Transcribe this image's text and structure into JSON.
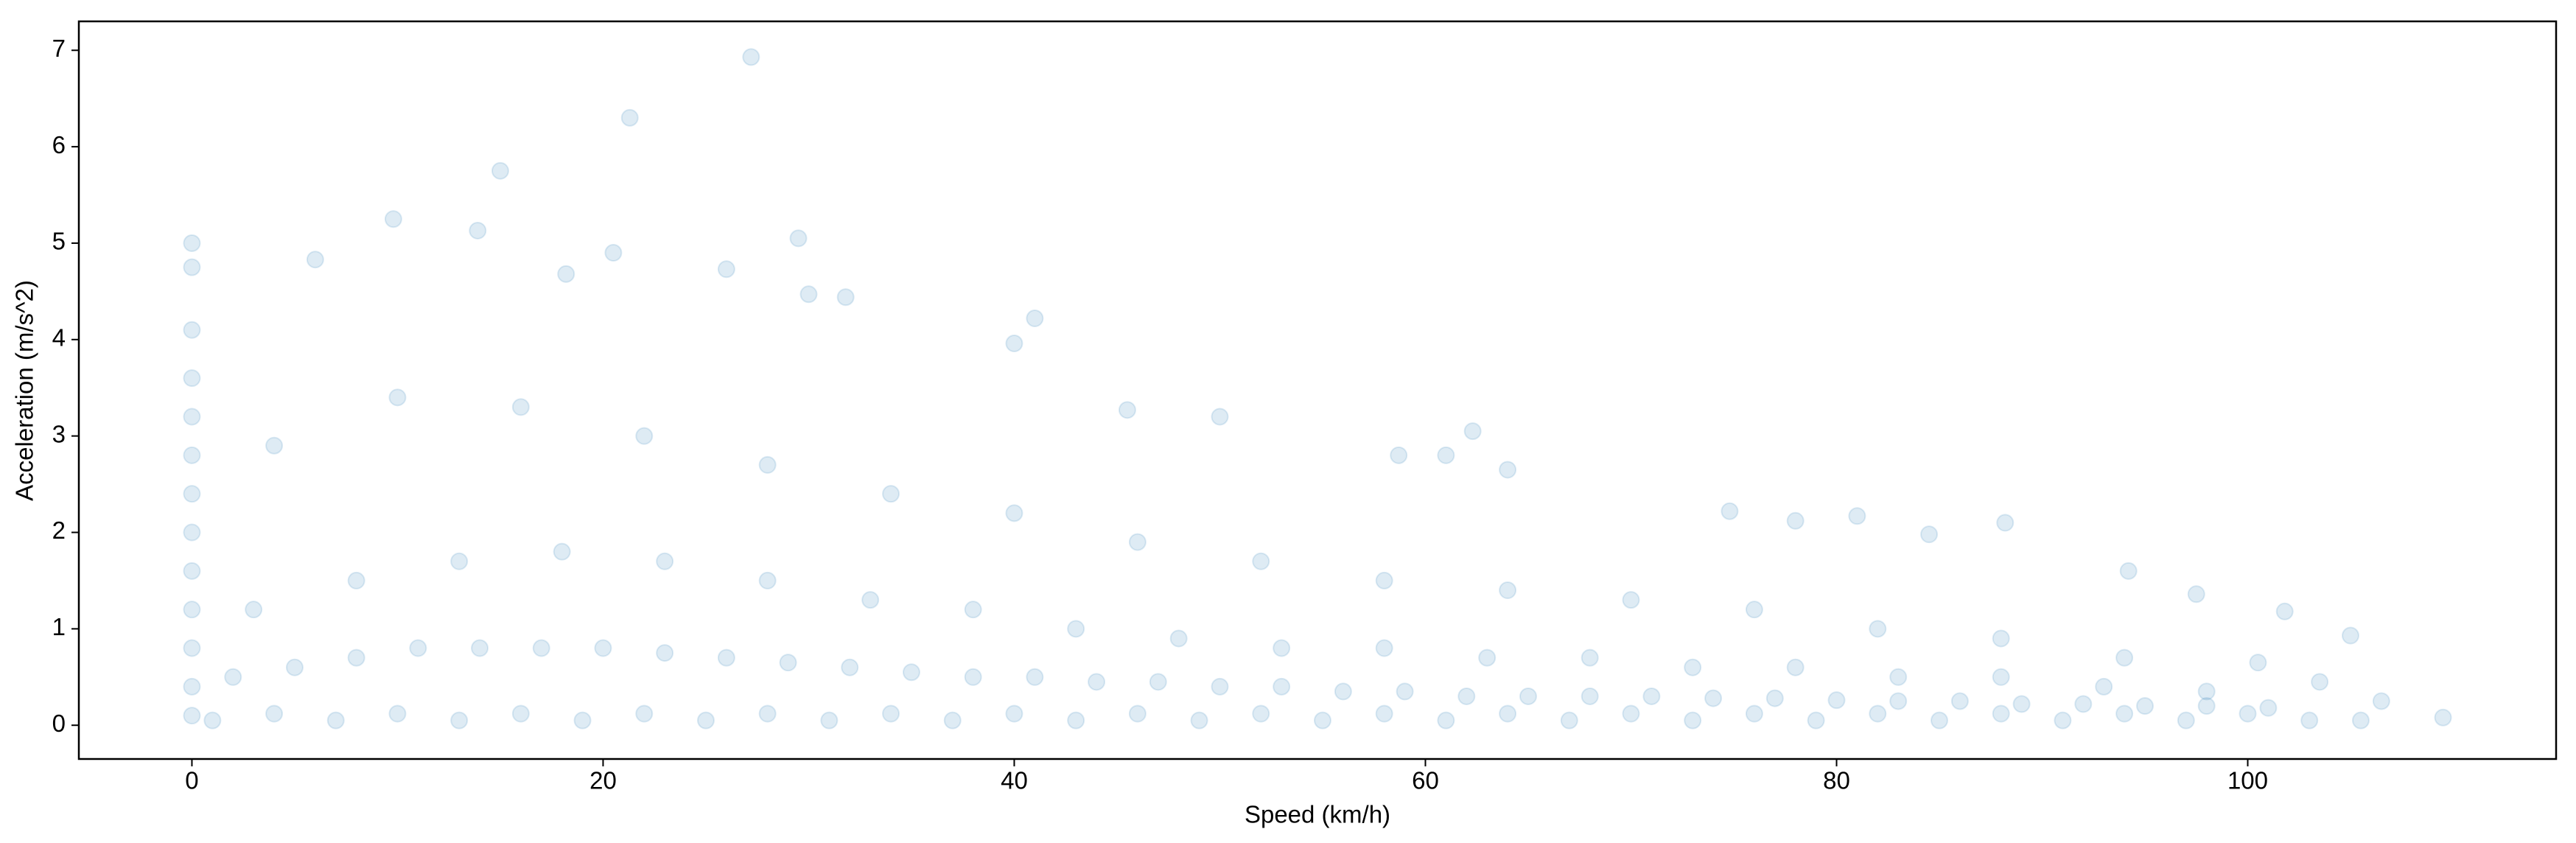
{
  "chart_data": {
    "type": "scatter",
    "xlabel": "Speed (km/h)",
    "ylabel": "Acceleration (m/s^2)",
    "color": "#1f77b4",
    "opacity": 0.15,
    "xlim": [
      -5.5,
      115
    ],
    "ylim": [
      -0.35,
      7.3
    ],
    "xticks": [
      0,
      20,
      40,
      60,
      80,
      100
    ],
    "yticks": [
      0,
      1,
      2,
      3,
      4,
      5,
      6,
      7
    ],
    "x": [
      0,
      0,
      0,
      0,
      0,
      0,
      0,
      0,
      0,
      0,
      0,
      1,
      4,
      7,
      10,
      13,
      16,
      19,
      22,
      25,
      28,
      31,
      34,
      37,
      40,
      43,
      46,
      49,
      52,
      55,
      58,
      61,
      64,
      67,
      70,
      73,
      76,
      79,
      82,
      85,
      88,
      91,
      94,
      97,
      100,
      103,
      2,
      5,
      8,
      11,
      14,
      17,
      20,
      23,
      26,
      29,
      32,
      35,
      38,
      41,
      44,
      47,
      50,
      53,
      56,
      59,
      62,
      65,
      68,
      71,
      74,
      77,
      80,
      83,
      86,
      89,
      92,
      95,
      98,
      101,
      3,
      8,
      13,
      18,
      23,
      28,
      33,
      38,
      43,
      48,
      53,
      58,
      63,
      68,
      73,
      78,
      83,
      88,
      93,
      98,
      4,
      10,
      16,
      22,
      28,
      34,
      40,
      46,
      52,
      58,
      64,
      70,
      76,
      82,
      88,
      94,
      27.2,
      21.3,
      15,
      9.8,
      13.9,
      29.5,
      0,
      0,
      6,
      18.2,
      20.5,
      26,
      30,
      31.8,
      41,
      40,
      45.5,
      50,
      62.3,
      58.7,
      61,
      64,
      74.8,
      78,
      81,
      84.5,
      88.2,
      94.2,
      97.5,
      101.8,
      105,
      106.5,
      109.5,
      105.5,
      103.5,
      100.5
    ],
    "y": [
      0.1,
      0.4,
      0.8,
      1.2,
      1.6,
      2,
      2.4,
      2.8,
      3.2,
      3.6,
      4.1,
      0.05,
      0.12,
      0.05,
      0.12,
      0.05,
      0.12,
      0.05,
      0.12,
      0.05,
      0.12,
      0.05,
      0.12,
      0.05,
      0.12,
      0.05,
      0.12,
      0.05,
      0.12,
      0.05,
      0.12,
      0.05,
      0.12,
      0.05,
      0.12,
      0.05,
      0.12,
      0.05,
      0.12,
      0.05,
      0.12,
      0.05,
      0.12,
      0.05,
      0.12,
      0.05,
      0.5,
      0.6,
      0.7,
      0.8,
      0.8,
      0.8,
      0.8,
      0.75,
      0.7,
      0.65,
      0.6,
      0.55,
      0.5,
      0.5,
      0.45,
      0.45,
      0.4,
      0.4,
      0.35,
      0.35,
      0.3,
      0.3,
      0.3,
      0.3,
      0.28,
      0.28,
      0.26,
      0.25,
      0.25,
      0.22,
      0.22,
      0.2,
      0.2,
      0.18,
      1.2,
      1.5,
      1.7,
      1.8,
      1.7,
      1.5,
      1.3,
      1.2,
      1,
      0.9,
      0.8,
      0.8,
      0.7,
      0.7,
      0.6,
      0.6,
      0.5,
      0.5,
      0.4,
      0.35,
      2.9,
      3.4,
      3.3,
      3,
      2.7,
      2.4,
      2.2,
      1.9,
      1.7,
      1.5,
      1.4,
      1.3,
      1.2,
      1,
      0.9,
      0.7,
      6.93,
      6.3,
      5.75,
      5.25,
      5.13,
      5.05,
      5,
      4.75,
      4.83,
      4.68,
      4.9,
      4.73,
      4.47,
      4.44,
      4.22,
      3.96,
      3.27,
      3.2,
      3.05,
      2.8,
      2.8,
      2.65,
      2.22,
      2.12,
      2.17,
      1.98,
      2.1,
      1.6,
      1.36,
      1.18,
      0.93,
      0.25,
      0.08,
      0.05,
      0.45,
      0.65
    ]
  }
}
